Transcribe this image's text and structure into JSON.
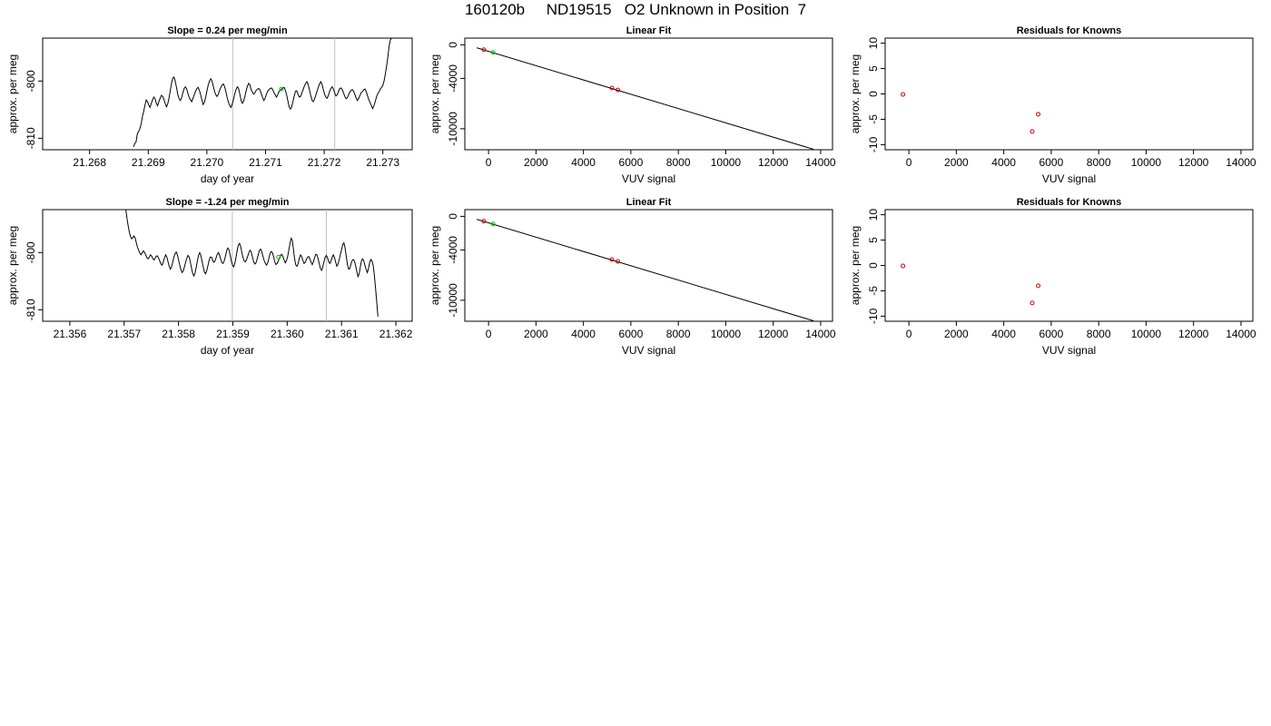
{
  "page": {
    "title": "160120b     ND19515   O2 Unknown in Position  7"
  },
  "chart_data": [
    {
      "type": "line",
      "title": "Slope =  0.24  per meg/min",
      "xlabel": "day of year",
      "ylabel": "approx. per meg",
      "xlim": [
        21.2672,
        21.2735
      ],
      "ylim": [
        -812,
        -792.5
      ],
      "xticks": [
        "21.268",
        "21.269",
        "21.270",
        "21.271",
        "21.272",
        "21.273"
      ],
      "yticks": [
        "-810",
        "-800"
      ],
      "vlines": [
        21.27044,
        21.27218
      ],
      "highlight_point": {
        "x": 21.27127,
        "y": -801.4
      },
      "trace": {
        "x_start": 21.26875,
        "x_end": 21.27315,
        "values": [
          -811.5,
          -810.9,
          -810.6,
          -809.2,
          -808.8,
          -808.3,
          -807.5,
          -806.2,
          -805.3,
          -804.2,
          -803.3,
          -803.6,
          -804.2,
          -804.6,
          -803.9,
          -803.3,
          -802.8,
          -803.1,
          -803.9,
          -804.3,
          -803.6,
          -803.0,
          -802.5,
          -802.7,
          -803.2,
          -803.9,
          -804.5,
          -804.0,
          -803.0,
          -801.7,
          -800.4,
          -799.5,
          -799.3,
          -800.1,
          -801.2,
          -802.4,
          -803.1,
          -803.4,
          -802.9,
          -802.0,
          -801.3,
          -801.0,
          -801.4,
          -802.2,
          -802.9,
          -803.3,
          -803.6,
          -803.0,
          -802.4,
          -801.8,
          -801.3,
          -801.1,
          -801.6,
          -802.4,
          -803.3,
          -804.1,
          -803.7,
          -802.8,
          -801.7,
          -800.7,
          -800.0,
          -799.6,
          -800.0,
          -800.9,
          -801.8,
          -802.4,
          -802.7,
          -802.3,
          -801.6,
          -801.1,
          -800.7,
          -800.5,
          -801.0,
          -801.9,
          -802.9,
          -803.7,
          -804.3,
          -804.6,
          -804.0,
          -803.2,
          -802.2,
          -801.5,
          -801.0,
          -801.3,
          -802.3,
          -803.4,
          -803.9,
          -803.5,
          -802.7,
          -801.7,
          -800.9,
          -800.4,
          -800.7,
          -801.5,
          -802.0,
          -802.3,
          -802.0,
          -801.6,
          -801.4,
          -801.3,
          -801.6,
          -802.2,
          -802.9,
          -803.4,
          -803.0,
          -802.3,
          -801.8,
          -801.5,
          -801.3,
          -801.2,
          -801.5,
          -802.0,
          -802.4,
          -802.8,
          -802.4,
          -801.8,
          -801.6,
          -801.4,
          -801.2,
          -801.1,
          -801.6,
          -802.4,
          -803.5,
          -804.5,
          -804.9,
          -804.5,
          -803.6,
          -802.6,
          -801.8,
          -801.7,
          -802.3,
          -802.8,
          -802.7,
          -802.1,
          -801.5,
          -800.9,
          -800.4,
          -800.1,
          -800.6,
          -801.5,
          -802.5,
          -803.3,
          -803.6,
          -803.2,
          -802.5,
          -801.8,
          -801.1,
          -800.5,
          -800.1,
          -800.6,
          -801.5,
          -802.3,
          -802.8,
          -803.0,
          -802.5,
          -801.8,
          -801.3,
          -801.0,
          -801.4,
          -802.1,
          -802.6,
          -802.4,
          -801.8,
          -801.3,
          -801.2,
          -801.5,
          -802.1,
          -802.7,
          -803.1,
          -802.9,
          -802.4,
          -801.9,
          -801.6,
          -801.5,
          -801.8,
          -802.4,
          -803.0,
          -803.4,
          -803.0,
          -802.5,
          -802.0,
          -801.8,
          -801.5,
          -801.4,
          -801.9,
          -802.6,
          -803.3,
          -803.8,
          -804.3,
          -804.8,
          -804.3,
          -803.6,
          -802.8,
          -802.2,
          -801.9,
          -801.4,
          -801.1,
          -800.8,
          -800.0,
          -798.8,
          -797.4,
          -795.8,
          -793.9,
          -792.8,
          -792.5
        ]
      }
    },
    {
      "type": "scatter",
      "title": "Linear Fit",
      "xlabel": "VUV signal",
      "ylabel": "approx. per meg",
      "xlim": [
        -1000,
        14500
      ],
      "ylim": [
        -12500,
        800
      ],
      "xticks": [
        "0",
        "2000",
        "4000",
        "6000",
        "8000",
        "10000",
        "12000",
        "14000"
      ],
      "yticks": [
        "0",
        "-4000",
        "-10000"
      ],
      "fit_line": {
        "x": [
          -500,
          13700
        ],
        "y": [
          -350,
          -12450
        ]
      },
      "red_points": [
        {
          "x": -200,
          "y": -580
        },
        {
          "x": 5200,
          "y": -5150
        },
        {
          "x": 5450,
          "y": -5380
        }
      ],
      "green_points": [
        {
          "x": 190,
          "y": -900
        }
      ]
    },
    {
      "type": "scatter",
      "title": "Residuals for Knowns",
      "xlabel": "VUV signal",
      "ylabel": "approx. per meg",
      "xlim": [
        -1000,
        14500
      ],
      "ylim": [
        -11,
        11
      ],
      "xticks": [
        "0",
        "2000",
        "4000",
        "6000",
        "8000",
        "10000",
        "12000",
        "14000"
      ],
      "yticks": [
        "-10",
        "-5",
        "0",
        "5",
        "10"
      ],
      "red_points": [
        {
          "x": -250,
          "y": -0.1
        },
        {
          "x": 5200,
          "y": -7.4
        },
        {
          "x": 5450,
          "y": -4.0
        }
      ]
    },
    {
      "type": "line",
      "title": "Slope =  -1.24  per meg/min",
      "xlabel": "day of year",
      "ylabel": "approx. per meg",
      "xlim": [
        21.3555,
        21.3623
      ],
      "ylim": [
        -812,
        -792.5
      ],
      "xticks": [
        "21.356",
        "21.357",
        "21.358",
        "21.359",
        "21.360",
        "21.361",
        "21.362"
      ],
      "yticks": [
        "-810",
        "-800"
      ],
      "vlines": [
        21.35899,
        21.36072
      ],
      "highlight_point": {
        "x": 21.35984,
        "y": -800.8
      },
      "trace": {
        "x_start": 21.35703,
        "x_end": 21.36167,
        "values": [
          -792.5,
          -794.0,
          -795.3,
          -796.4,
          -797.2,
          -797.6,
          -797.4,
          -797.1,
          -797.5,
          -798.3,
          -799.1,
          -799.6,
          -800.1,
          -800.4,
          -800.0,
          -799.7,
          -800.0,
          -800.4,
          -800.9,
          -801.1,
          -800.8,
          -800.4,
          -800.6,
          -801.0,
          -801.3,
          -801.0,
          -800.6,
          -800.6,
          -801.0,
          -801.5,
          -802.0,
          -802.2,
          -801.6,
          -800.9,
          -800.4,
          -800.8,
          -801.6,
          -802.4,
          -802.9,
          -802.5,
          -801.7,
          -800.8,
          -800.2,
          -799.9,
          -800.4,
          -801.3,
          -802.2,
          -803.0,
          -803.5,
          -803.2,
          -802.5,
          -801.7,
          -801.0,
          -800.5,
          -800.8,
          -801.6,
          -802.7,
          -803.6,
          -804.1,
          -803.6,
          -802.6,
          -801.5,
          -800.5,
          -800.0,
          -800.5,
          -801.5,
          -802.5,
          -803.4,
          -803.7,
          -803.2,
          -802.3,
          -801.4,
          -800.8,
          -800.8,
          -801.3,
          -801.7,
          -801.5,
          -800.9,
          -800.3,
          -800.0,
          -800.5,
          -801.2,
          -801.8,
          -801.9,
          -801.4,
          -800.6,
          -799.7,
          -799.2,
          -799.5,
          -800.4,
          -801.5,
          -802.2,
          -802.5,
          -801.9,
          -800.8,
          -799.6,
          -798.7,
          -798.4,
          -799.0,
          -800.0,
          -800.9,
          -801.5,
          -801.6,
          -801.2,
          -800.6,
          -800.0,
          -799.6,
          -799.9,
          -800.8,
          -801.6,
          -802.0,
          -801.8,
          -801.1,
          -800.3,
          -799.6,
          -799.4,
          -799.9,
          -800.7,
          -801.4,
          -801.9,
          -802.2,
          -801.8,
          -801.0,
          -800.2,
          -799.8,
          -800.0,
          -800.7,
          -801.6,
          -802.1,
          -801.9,
          -801.5,
          -801.0,
          -800.5,
          -800.3,
          -800.7,
          -801.3,
          -801.8,
          -801.4,
          -800.7,
          -799.6,
          -798.4,
          -797.5,
          -797.9,
          -799.5,
          -801.2,
          -802.2,
          -802.4,
          -801.9,
          -801.0,
          -800.4,
          -800.7,
          -801.4,
          -801.9,
          -801.7,
          -801.2,
          -800.8,
          -800.7,
          -801.1,
          -801.7,
          -802.1,
          -801.6,
          -800.9,
          -800.3,
          -800.4,
          -801.1,
          -802.0,
          -802.8,
          -803.1,
          -802.5,
          -801.6,
          -800.8,
          -800.5,
          -800.9,
          -801.6,
          -801.9,
          -801.5,
          -800.8,
          -800.4,
          -800.9,
          -801.7,
          -802.4,
          -802.0,
          -801.2,
          -800.3,
          -799.5,
          -798.6,
          -798.3,
          -799.2,
          -800.7,
          -802.1,
          -802.9,
          -802.8,
          -802.0,
          -801.4,
          -801.2,
          -801.5,
          -802.3,
          -803.3,
          -804.2,
          -803.7,
          -802.5,
          -801.4,
          -801.1,
          -801.5,
          -802.3,
          -803.0,
          -803.5,
          -802.7,
          -801.7,
          -801.2,
          -801.5,
          -802.3,
          -804.1,
          -806.3,
          -808.7,
          -811.2
        ]
      }
    },
    {
      "type": "scatter",
      "title": "Linear Fit",
      "xlabel": "VUV signal",
      "ylabel": "approx. per meg",
      "xlim": [
        -1000,
        14500
      ],
      "ylim": [
        -12500,
        800
      ],
      "xticks": [
        "0",
        "2000",
        "4000",
        "6000",
        "8000",
        "10000",
        "12000",
        "14000"
      ],
      "yticks": [
        "0",
        "-4000",
        "-10000"
      ],
      "fit_line": {
        "x": [
          -500,
          13700
        ],
        "y": [
          -350,
          -12450
        ]
      },
      "red_points": [
        {
          "x": -200,
          "y": -580
        },
        {
          "x": 5200,
          "y": -5150
        },
        {
          "x": 5450,
          "y": -5380
        }
      ],
      "green_points": [
        {
          "x": 190,
          "y": -900
        }
      ]
    },
    {
      "type": "scatter",
      "title": "Residuals for Knowns",
      "xlabel": "VUV signal",
      "ylabel": "approx. per meg",
      "xlim": [
        -1000,
        14500
      ],
      "ylim": [
        -11,
        11
      ],
      "xticks": [
        "0",
        "2000",
        "4000",
        "6000",
        "8000",
        "10000",
        "12000",
        "14000"
      ],
      "yticks": [
        "-10",
        "-5",
        "0",
        "5",
        "10"
      ],
      "red_points": [
        {
          "x": -250,
          "y": -0.1
        },
        {
          "x": 5200,
          "y": -7.4
        },
        {
          "x": 5450,
          "y": -4.0
        }
      ]
    }
  ],
  "colors": {
    "axis": "#000000",
    "trace": "#000000",
    "known_point": "#d00000",
    "unknown_point": "#00c000",
    "vline": "#bebebe"
  }
}
